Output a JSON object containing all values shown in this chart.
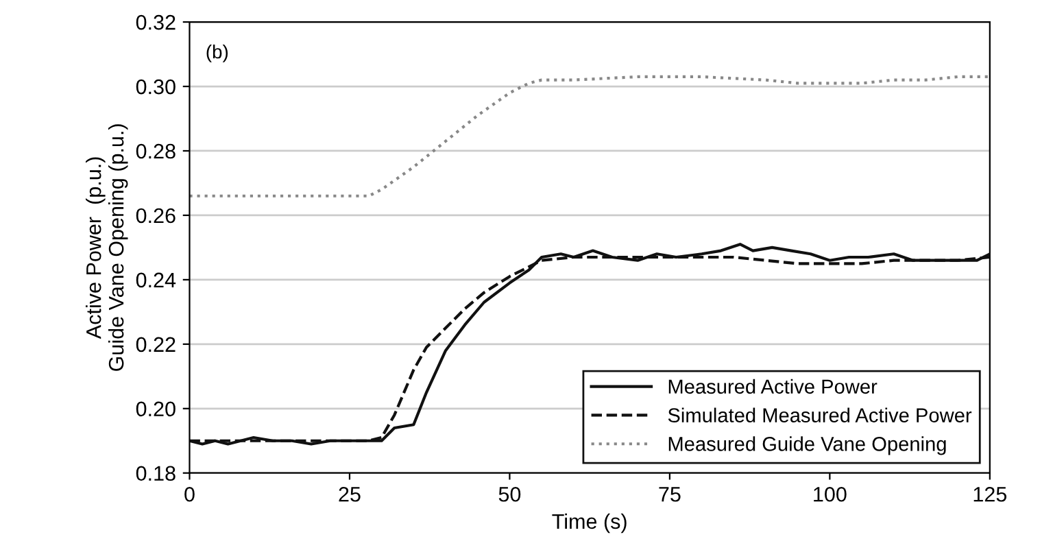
{
  "chart_data": {
    "type": "line",
    "xlabel": "Time (s)",
    "ylabel": "Active Power  (p.u.)\nGuide Vane Opening (p.u.)",
    "annotations": [
      "(b)"
    ],
    "xlim": [
      0,
      125
    ],
    "ylim": [
      0.18,
      0.32
    ],
    "xticks": [
      0,
      25,
      50,
      75,
      100,
      125
    ],
    "yticks": [
      0.18,
      {
        "value": 0.2,
        "label": "0.20"
      },
      0.22,
      0.24,
      0.26,
      0.28,
      {
        "value": 0.3,
        "label": "0.30"
      },
      0.32
    ],
    "grid": "y",
    "legend": "bottom right",
    "series": [
      {
        "name": "Measured Active Power",
        "color": "#111111",
        "line_style": "solid",
        "x": [
          0,
          2,
          4,
          6,
          8,
          10,
          13,
          16,
          19,
          22,
          25,
          28,
          30,
          32,
          35,
          37,
          40,
          43,
          46,
          50,
          53,
          55,
          58,
          60,
          63,
          66,
          70,
          73,
          76,
          80,
          83,
          86,
          88,
          91,
          94,
          97,
          100,
          103,
          106,
          110,
          113,
          116,
          120,
          123,
          125
        ],
        "values": [
          0.19,
          0.189,
          0.19,
          0.189,
          0.19,
          0.191,
          0.19,
          0.19,
          0.189,
          0.19,
          0.19,
          0.19,
          0.19,
          0.194,
          0.195,
          0.205,
          0.218,
          0.226,
          0.233,
          0.239,
          0.243,
          0.247,
          0.248,
          0.247,
          0.249,
          0.247,
          0.246,
          0.248,
          0.247,
          0.248,
          0.249,
          0.251,
          0.249,
          0.25,
          0.249,
          0.248,
          0.246,
          0.247,
          0.247,
          0.248,
          0.246,
          0.246,
          0.246,
          0.246,
          0.248
        ]
      },
      {
        "name": "Simulated Measured Active Power",
        "color": "#111111",
        "line_style": "dashed",
        "x": [
          0,
          5,
          10,
          15,
          20,
          25,
          28,
          30,
          32,
          35,
          37,
          40,
          43,
          46,
          50,
          53,
          55,
          60,
          65,
          70,
          75,
          80,
          85,
          90,
          95,
          100,
          105,
          110,
          115,
          120,
          125
        ],
        "values": [
          0.19,
          0.19,
          0.19,
          0.19,
          0.19,
          0.19,
          0.19,
          0.191,
          0.198,
          0.212,
          0.219,
          0.225,
          0.231,
          0.236,
          0.241,
          0.244,
          0.246,
          0.247,
          0.247,
          0.247,
          0.247,
          0.247,
          0.247,
          0.246,
          0.245,
          0.245,
          0.245,
          0.246,
          0.246,
          0.246,
          0.247
        ]
      },
      {
        "name": "Measured Guide Vane Opening",
        "color": "#888888",
        "line_style": "dotted",
        "x": [
          0,
          10,
          20,
          28,
          30,
          35,
          40,
          45,
          50,
          53,
          55,
          60,
          70,
          80,
          90,
          95,
          100,
          105,
          110,
          115,
          120,
          125
        ],
        "values": [
          0.266,
          0.266,
          0.266,
          0.266,
          0.268,
          0.275,
          0.283,
          0.291,
          0.298,
          0.301,
          0.302,
          0.302,
          0.303,
          0.303,
          0.302,
          0.301,
          0.301,
          0.301,
          0.302,
          0.302,
          0.303,
          0.303
        ]
      }
    ]
  }
}
